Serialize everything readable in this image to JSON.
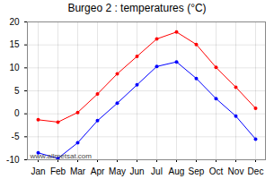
{
  "chart_data": {
    "type": "line",
    "title": "Burgeo 2 : temperatures (°C)",
    "categories": [
      "Jan",
      "Feb",
      "Mar",
      "Apr",
      "May",
      "Jun",
      "Jul",
      "Aug",
      "Sep",
      "Oct",
      "Nov",
      "Dec"
    ],
    "series": [
      {
        "color": "#ff0000",
        "marker": "circle",
        "values": [
          -1.3,
          -1.8,
          0.3,
          4.3,
          8.7,
          12.5,
          16.3,
          17.8,
          15.1,
          10.1,
          5.8,
          1.2
        ]
      },
      {
        "color": "#0000ff",
        "marker": "circle",
        "values": [
          -8.5,
          -9.7,
          -6.3,
          -1.5,
          2.3,
          6.3,
          10.3,
          11.3,
          7.7,
          3.3,
          -0.5,
          -5.5
        ]
      }
    ],
    "ylim": [
      -10,
      20
    ],
    "yticks": [
      -10,
      -5,
      0,
      5,
      10,
      15,
      20
    ],
    "grid": true,
    "annotations": [
      "www.allmetsat.com"
    ]
  }
}
